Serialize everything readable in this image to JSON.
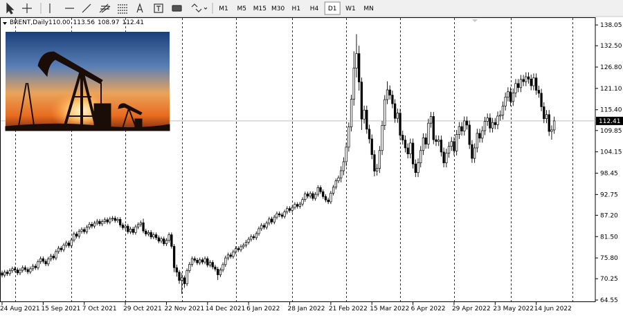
{
  "toolbar": {
    "timeframes": [
      "M1",
      "M5",
      "M15",
      "M30",
      "H1",
      "H4",
      "D1",
      "W1",
      "MN"
    ],
    "active": "D1"
  },
  "chart_data": {
    "type": "candlestick",
    "title": "BRENT,Daily",
    "header_values": [
      {
        "value": 110,
        "label": "110.00"
      },
      113.56,
      108.97,
      112.41
    ],
    "last_price": 112.41,
    "ylim": [
      64.0,
      140.1
    ],
    "yticks": [
      138.05,
      {
        "value": 132.5,
        "label": "132.50"
      },
      {
        "value": 126.8,
        "label": "126.80"
      },
      {
        "value": 121.1,
        "label": "121.10"
      },
      {
        "value": 115.4,
        "label": "115.40"
      },
      109.85,
      104.15,
      98.45,
      92.75,
      {
        "value": 87.2,
        "label": "87.20"
      },
      {
        "value": 81.5,
        "label": "81.50"
      },
      {
        "value": 75.8,
        "label": "75.80"
      },
      70.25,
      64.55
    ],
    "xlim": [
      -0.81,
      231
    ],
    "xticks": [
      {
        "value": 0,
        "label": "24 Aug 2021"
      },
      {
        "value": 16,
        "label": "15 Sep 2021"
      },
      {
        "value": 32,
        "label": "7 Oct 2021"
      },
      {
        "value": 48,
        "label": "29 Oct 2021"
      },
      {
        "value": 64,
        "label": "22 Nov 2021"
      },
      {
        "value": 80,
        "label": "14 Dec 2021"
      },
      {
        "value": 96,
        "label": "6 Jan 2022"
      },
      {
        "value": 112,
        "label": "28 Jan 2022"
      },
      {
        "value": 128,
        "label": "21 Feb 2022"
      },
      {
        "value": 144,
        "label": "15 Mar 2022"
      },
      {
        "value": 160,
        "label": "6 Apr 2022"
      },
      {
        "value": 176,
        "label": "29 Apr 2022"
      },
      {
        "value": 192,
        "label": "23 May 2022"
      },
      {
        "value": 208,
        "label": "14 Jun 2022"
      }
    ],
    "xgrid": [
      5,
      27,
      48,
      70,
      91,
      113,
      134,
      155,
      176,
      198,
      222
    ],
    "bull_color": "#ffffff",
    "bear_color": "#000000",
    "outline_color": "#000000",
    "open": [
      71.8,
      71.2,
      72.0,
      71.6,
      72.4,
      72.9,
      72.6,
      71.8,
      72.5,
      73.2,
      72.7,
      72.1,
      72.9,
      73.6,
      73.2,
      74.8,
      75.6,
      74.9,
      74.2,
      75.5,
      76.3,
      75.8,
      77.5,
      78.4,
      78.0,
      79.2,
      79.8,
      79.1,
      80.6,
      82.2,
      81.6,
      82.9,
      83.4,
      82.8,
      84.0,
      84.8,
      84.3,
      85.1,
      85.6,
      84.9,
      85.5,
      86.0,
      85.4,
      86.2,
      86.4,
      85.8,
      86.1,
      84.6,
      83.9,
      84.3,
      82.8,
      83.5,
      82.6,
      84.1,
      84.7,
      85.2,
      83.0,
      82.2,
      82.6,
      81.4,
      82.0,
      81.2,
      80.3,
      80.9,
      79.6,
      80.5,
      82.0,
      78.9,
      73.2,
      72.0,
      69.8,
      70.5,
      68.9,
      72.4,
      74.1,
      75.6,
      75.2,
      74.5,
      75.3,
      74.7,
      75.6,
      73.9,
      74.6,
      73.4,
      72.8,
      71.3,
      72.6,
      74.0,
      75.8,
      76.6,
      76.2,
      77.4,
      78.3,
      78.0,
      78.8,
      79.2,
      80.0,
      80.8,
      81.5,
      81.2,
      82.3,
      83.6,
      84.5,
      84.0,
      85.1,
      86.2,
      85.4,
      86.7,
      87.6,
      87.3,
      86.9,
      88.1,
      89.0,
      88.5,
      89.3,
      90.1,
      89.6,
      90.2,
      91.4,
      92.9,
      92.3,
      93.0,
      91.7,
      92.8,
      94.6,
      93.5,
      92.2,
      91.3,
      90.8,
      93.1,
      94.7,
      96.4,
      97.2,
      99.1,
      101.5,
      105.4,
      110.8,
      118.2,
      126.5,
      130.4,
      122.8,
      112.9,
      115.3,
      110.2,
      107.6,
      103.4,
      99.0,
      99.7,
      104.5,
      111.2,
      118.1,
      120.7,
      119.3,
      117.0,
      113.1,
      114.5,
      108.6,
      107.3,
      105.2,
      103.6,
      106.5,
      100.9,
      98.6,
      101.2,
      104.5,
      107.9,
      106.2,
      111.8,
      113.6,
      107.4,
      106.9,
      107.3,
      104.1,
      101.2,
      103.8,
      105.6,
      106.9,
      104.4,
      108.8,
      110.9,
      109.7,
      112.4,
      111.3,
      106.1,
      102.4,
      105.2,
      109.1,
      107.8,
      109.8,
      112.3,
      113.2,
      110.5,
      112.0,
      111.4,
      113.7,
      114.0,
      116.4,
      118.8,
      120.2,
      117.6,
      119.9,
      122.4,
      121.3,
      123.5,
      122.9,
      124.2,
      123.6,
      121.8,
      123.9,
      120.6,
      119.8,
      116.2,
      113.0,
      114.1,
      109.6,
      110.0
    ],
    "high": [
      72.4,
      72.6,
      72.6,
      73.0,
      73.5,
      73.5,
      73.2,
      73.1,
      73.8,
      73.8,
      73.3,
      73.5,
      74.2,
      74.2,
      75.4,
      76.2,
      76.2,
      75.5,
      76.1,
      76.9,
      76.9,
      78.1,
      79.0,
      79.0,
      79.8,
      80.4,
      80.4,
      81.2,
      82.8,
      82.8,
      83.5,
      84.0,
      84.0,
      84.6,
      85.4,
      85.4,
      85.7,
      86.2,
      86.2,
      86.1,
      86.6,
      86.6,
      86.8,
      87.0,
      87.0,
      86.7,
      86.7,
      85.2,
      84.9,
      84.9,
      84.1,
      84.1,
      84.7,
      85.3,
      85.8,
      86.3,
      83.6,
      83.2,
      83.2,
      82.6,
      82.6,
      81.8,
      81.5,
      81.5,
      81.1,
      82.6,
      82.6,
      79.5,
      74.0,
      72.6,
      71.8,
      71.1,
      73.0,
      74.7,
      76.2,
      76.2,
      75.8,
      75.9,
      75.9,
      76.2,
      76.2,
      75.2,
      75.2,
      74.0,
      73.4,
      73.2,
      74.6,
      76.4,
      77.2,
      77.2,
      78.0,
      78.9,
      78.9,
      79.4,
      79.8,
      80.6,
      81.4,
      82.1,
      82.1,
      82.9,
      84.2,
      85.1,
      85.1,
      85.7,
      86.8,
      86.8,
      87.3,
      88.2,
      88.2,
      87.9,
      88.7,
      89.6,
      89.6,
      89.9,
      90.7,
      90.7,
      90.8,
      92.0,
      93.5,
      93.5,
      93.6,
      93.6,
      93.4,
      95.2,
      95.2,
      94.1,
      92.8,
      91.9,
      93.7,
      95.3,
      97.0,
      97.8,
      100.3,
      102.7,
      106.6,
      112.0,
      119.4,
      131.0,
      135.6,
      132.5,
      124.0,
      116.5,
      116.5,
      111.4,
      108.8,
      104.6,
      100.9,
      105.7,
      112.4,
      119.3,
      123.0,
      121.9,
      120.5,
      118.2,
      115.7,
      115.7,
      109.8,
      108.5,
      106.4,
      107.7,
      107.7,
      102.1,
      102.4,
      105.7,
      109.1,
      109.1,
      113.0,
      114.8,
      114.8,
      108.6,
      108.5,
      108.5,
      105.3,
      105.0,
      106.8,
      108.1,
      108.1,
      110.0,
      112.1,
      112.1,
      113.6,
      113.6,
      112.5,
      107.3,
      106.4,
      110.3,
      110.3,
      111.0,
      113.5,
      114.4,
      114.4,
      113.2,
      113.2,
      114.9,
      115.2,
      117.6,
      120.0,
      121.4,
      121.4,
      121.1,
      123.6,
      123.6,
      124.7,
      124.7,
      125.4,
      125.4,
      124.8,
      125.1,
      125.1,
      121.8,
      121.0,
      117.4,
      115.3,
      115.3,
      111.2,
      113.56
    ],
    "low": [
      70.6,
      70.6,
      71.0,
      71.0,
      71.8,
      72.0,
      71.2,
      71.2,
      71.9,
      72.1,
      71.5,
      71.5,
      72.3,
      72.6,
      72.6,
      74.2,
      74.3,
      73.6,
      73.6,
      74.9,
      75.2,
      75.2,
      76.9,
      77.4,
      77.4,
      78.6,
      78.5,
      78.5,
      80.0,
      81.0,
      81.0,
      82.3,
      82.2,
      82.2,
      83.4,
      83.7,
      83.7,
      84.5,
      84.3,
      84.3,
      84.9,
      84.8,
      84.8,
      85.6,
      85.2,
      85.2,
      84.0,
      83.3,
      83.3,
      82.2,
      82.2,
      82.0,
      82.0,
      83.5,
      84.1,
      82.4,
      81.6,
      81.6,
      80.8,
      80.8,
      80.6,
      79.7,
      79.7,
      79.0,
      79.0,
      79.9,
      78.3,
      72.0,
      70.8,
      68.9,
      66.2,
      67.8,
      68.3,
      71.8,
      73.5,
      74.6,
      73.9,
      73.9,
      74.1,
      74.1,
      73.3,
      73.3,
      72.8,
      72.2,
      69.9,
      70.7,
      72.0,
      73.4,
      75.2,
      75.6,
      75.6,
      76.8,
      77.4,
      77.4,
      78.2,
      78.6,
      79.4,
      80.2,
      80.6,
      80.6,
      81.7,
      83.0,
      83.4,
      83.4,
      84.5,
      84.8,
      84.8,
      86.1,
      86.7,
      86.3,
      86.3,
      87.5,
      87.9,
      87.9,
      88.7,
      89.0,
      89.0,
      89.6,
      90.8,
      91.7,
      91.7,
      91.1,
      91.1,
      92.2,
      92.9,
      91.6,
      90.7,
      90.2,
      90.2,
      92.5,
      94.1,
      95.8,
      96.0,
      97.9,
      100.3,
      104.2,
      109.6,
      116.5,
      124.0,
      120.5,
      110.0,
      111.7,
      109.0,
      106.4,
      102.2,
      97.6,
      97.8,
      98.5,
      103.3,
      110.0,
      116.9,
      118.1,
      115.8,
      111.9,
      111.9,
      107.4,
      106.1,
      104.0,
      102.4,
      102.4,
      99.7,
      97.4,
      97.4,
      100.0,
      103.3,
      105.0,
      105.0,
      110.6,
      106.2,
      105.7,
      105.7,
      102.9,
      100.0,
      100.0,
      102.6,
      104.4,
      103.2,
      103.2,
      107.6,
      108.5,
      108.5,
      110.1,
      104.9,
      101.2,
      101.2,
      104.0,
      106.6,
      106.6,
      108.6,
      111.1,
      109.3,
      109.3,
      110.2,
      110.2,
      112.5,
      112.8,
      115.2,
      117.6,
      116.4,
      116.4,
      118.7,
      120.1,
      120.1,
      121.7,
      121.7,
      122.4,
      120.6,
      120.6,
      119.4,
      118.6,
      115.0,
      111.8,
      111.8,
      108.4,
      107.4,
      108.97
    ],
    "close": [
      71.2,
      72.0,
      71.6,
      72.4,
      72.9,
      72.6,
      71.8,
      72.5,
      73.2,
      72.7,
      72.1,
      72.9,
      73.6,
      73.2,
      74.8,
      75.6,
      74.9,
      74.2,
      75.5,
      76.3,
      75.8,
      77.5,
      78.4,
      78.0,
      79.2,
      79.8,
      79.1,
      80.6,
      82.2,
      81.6,
      82.9,
      83.4,
      82.8,
      84.0,
      84.8,
      84.3,
      85.1,
      85.6,
      84.9,
      85.5,
      86.0,
      85.4,
      86.2,
      86.4,
      85.8,
      86.1,
      84.6,
      83.9,
      84.3,
      82.8,
      83.5,
      82.6,
      84.1,
      84.7,
      85.2,
      83.0,
      82.2,
      82.6,
      81.4,
      82.0,
      81.2,
      80.3,
      80.9,
      79.6,
      80.5,
      82.0,
      78.9,
      73.2,
      72.0,
      69.8,
      70.5,
      68.9,
      72.4,
      74.1,
      75.6,
      75.2,
      74.5,
      75.3,
      74.7,
      75.6,
      73.9,
      74.6,
      73.4,
      72.8,
      71.3,
      72.6,
      74.0,
      75.8,
      76.6,
      76.2,
      77.4,
      78.3,
      78.0,
      78.8,
      79.2,
      80.0,
      80.8,
      81.5,
      81.2,
      82.3,
      83.6,
      84.5,
      84.0,
      85.1,
      86.2,
      85.4,
      86.7,
      87.6,
      87.3,
      86.9,
      88.1,
      89.0,
      88.5,
      89.3,
      90.1,
      89.6,
      90.2,
      91.4,
      92.9,
      92.3,
      93.0,
      91.7,
      92.8,
      94.6,
      93.5,
      92.2,
      91.3,
      90.8,
      93.1,
      94.7,
      96.4,
      97.2,
      99.1,
      101.5,
      105.4,
      110.8,
      118.2,
      126.5,
      130.4,
      122.8,
      112.9,
      115.3,
      110.2,
      107.6,
      103.4,
      99.0,
      99.7,
      104.5,
      111.2,
      118.1,
      120.7,
      119.3,
      117.0,
      113.1,
      114.5,
      108.6,
      107.3,
      105.2,
      103.6,
      106.5,
      100.9,
      98.6,
      101.2,
      104.5,
      107.9,
      106.2,
      111.8,
      113.6,
      107.4,
      106.9,
      107.3,
      104.1,
      101.2,
      103.8,
      105.6,
      106.9,
      104.4,
      108.8,
      110.9,
      109.7,
      112.4,
      111.3,
      106.1,
      102.4,
      105.2,
      109.1,
      107.8,
      109.8,
      112.3,
      113.2,
      110.5,
      112.0,
      111.4,
      113.7,
      114.0,
      116.4,
      118.8,
      120.2,
      117.6,
      119.9,
      122.4,
      121.3,
      123.5,
      122.9,
      124.2,
      123.6,
      121.8,
      123.9,
      120.6,
      119.8,
      116.2,
      113.0,
      114.1,
      109.6,
      110.0,
      112.41
    ]
  }
}
